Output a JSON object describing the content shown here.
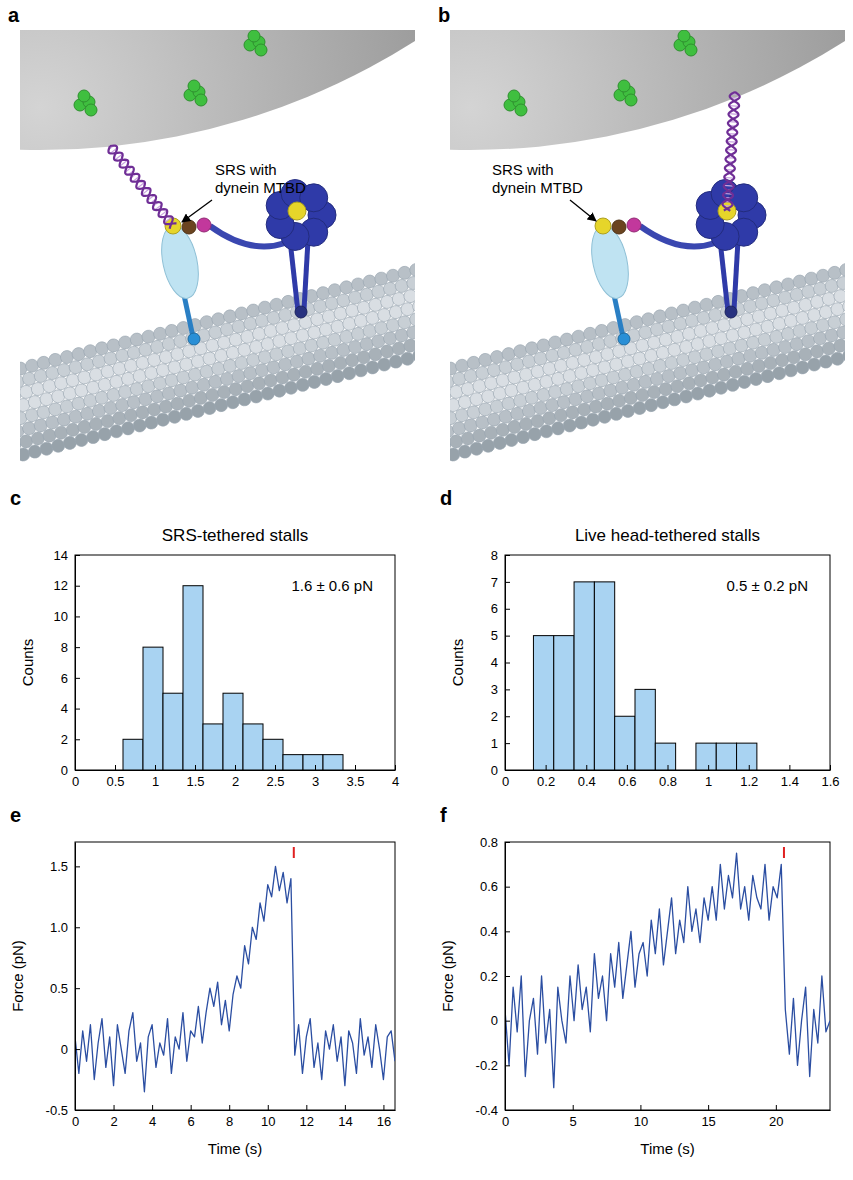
{
  "diagrams": [
    {
      "panel": "a",
      "label": "SRS with dynein MTBD"
    },
    {
      "panel": "b",
      "label": "SRS with dynein MTBD"
    }
  ],
  "chart_data": [
    {
      "panel": "c",
      "type": "histogram",
      "title": "SRS-tethered stalls",
      "annotation": "1.6 ± 0.6 pN",
      "ylabel": "Counts",
      "bins": [
        0.6,
        0.85,
        1.1,
        1.35,
        1.6,
        1.85,
        2.1,
        2.35,
        2.6,
        2.85,
        3.1,
        3.35
      ],
      "values": [
        2,
        8,
        5,
        12,
        3,
        5,
        3,
        2,
        1,
        1,
        1
      ],
      "color": "#a9d3f2",
      "xlim": [
        0,
        4
      ],
      "xticks": [
        0,
        0.5,
        1,
        1.5,
        2,
        2.5,
        3,
        3.5,
        4
      ],
      "ylim": [
        0,
        14
      ],
      "yticks": [
        0,
        2,
        4,
        6,
        8,
        10,
        12,
        14
      ]
    },
    {
      "panel": "d",
      "type": "histogram",
      "title": "Live head-tethered stalls",
      "annotation": "0.5 ± 0.2 pN",
      "ylabel": "Counts",
      "bins": [
        0.14,
        0.24,
        0.34,
        0.44,
        0.54,
        0.64,
        0.74,
        0.84,
        0.94,
        1.04,
        1.14,
        1.24
      ],
      "values": [
        5,
        5,
        7,
        7,
        2,
        3,
        1,
        0,
        1,
        1,
        1
      ],
      "color": "#a9d3f2",
      "xlim": [
        0,
        1.6
      ],
      "xticks": [
        0,
        0.2,
        0.4,
        0.6,
        0.8,
        1,
        1.2,
        1.4,
        1.6
      ],
      "ylim": [
        0,
        8
      ],
      "yticks": [
        0,
        1,
        2,
        3,
        4,
        5,
        6,
        7,
        8
      ]
    },
    {
      "panel": "e",
      "type": "line",
      "xlabel": "Time (s)",
      "ylabel": "Force (pN)",
      "color": "#2b4ea2",
      "event_x": 11.35,
      "x": [
        0,
        0.2,
        0.4,
        0.6,
        0.8,
        1,
        1.2,
        1.4,
        1.6,
        1.8,
        2,
        2.2,
        2.4,
        2.6,
        2.8,
        3,
        3.2,
        3.4,
        3.6,
        3.8,
        4,
        4.2,
        4.4,
        4.6,
        4.8,
        5,
        5.2,
        5.4,
        5.6,
        5.8,
        6,
        6.2,
        6.4,
        6.6,
        6.8,
        7,
        7.2,
        7.4,
        7.6,
        7.8,
        8,
        8.2,
        8.4,
        8.6,
        8.8,
        9,
        9.2,
        9.4,
        9.6,
        9.8,
        10,
        10.2,
        10.4,
        10.6,
        10.8,
        11,
        11.2,
        11.4,
        11.6,
        11.8,
        12,
        12.2,
        12.4,
        12.6,
        12.8,
        13,
        13.2,
        13.4,
        13.6,
        13.8,
        14,
        14.2,
        14.4,
        14.6,
        14.8,
        15,
        15.2,
        15.4,
        15.6,
        15.8,
        16,
        16.2,
        16.4,
        16.6
      ],
      "values": [
        0.1,
        -0.2,
        0.15,
        -0.1,
        0.2,
        -0.25,
        0.05,
        0.25,
        -0.15,
        0.1,
        -0.3,
        0.2,
        0,
        -0.2,
        0.15,
        0.3,
        -0.1,
        0.05,
        -0.35,
        0.1,
        0.2,
        -0.15,
        0.05,
        -0.05,
        0.25,
        -0.2,
        0.1,
        0,
        0.3,
        -0.1,
        0.15,
        0.1,
        0.35,
        0.05,
        0.3,
        0.5,
        0.35,
        0.55,
        0.2,
        0.4,
        0.15,
        0.45,
        0.6,
        0.5,
        0.85,
        0.7,
        1,
        0.9,
        1.2,
        1.05,
        1.35,
        1.25,
        1.5,
        1.3,
        1.45,
        1.2,
        1.4,
        -0.05,
        0.2,
        -0.2,
        0.1,
        0.25,
        -0.15,
        0.05,
        -0.25,
        0.15,
        0,
        0.2,
        -0.1,
        0.1,
        -0.3,
        0.15,
        0.05,
        -0.2,
        0.25,
        -0.05,
        0.1,
        -0.15,
        0.2,
        0,
        -0.25,
        0.1,
        0.15,
        -0.1
      ],
      "xlim": [
        0,
        16.6
      ],
      "xticks": [
        0,
        2,
        4,
        6,
        8,
        10,
        12,
        14,
        16
      ],
      "ylim": [
        -0.5,
        1.7
      ],
      "yticks": [
        -0.5,
        0,
        0.5,
        {
          "value": 1,
          "label": "1.0"
        },
        1.5
      ]
    },
    {
      "panel": "f",
      "type": "line",
      "xlabel": "Time (s)",
      "ylabel": "Force (pN)",
      "color": "#2b4ea2",
      "event_x": 20.6,
      "x": [
        0,
        0.3,
        0.6,
        0.9,
        1.2,
        1.5,
        1.8,
        2.1,
        2.4,
        2.7,
        3,
        3.3,
        3.6,
        3.9,
        4.2,
        4.5,
        4.8,
        5.1,
        5.4,
        5.7,
        6,
        6.3,
        6.6,
        6.9,
        7.2,
        7.5,
        7.8,
        8.1,
        8.4,
        8.7,
        9,
        9.3,
        9.6,
        9.9,
        10.2,
        10.5,
        10.8,
        11.1,
        11.4,
        11.7,
        12,
        12.3,
        12.6,
        12.9,
        13.2,
        13.5,
        13.8,
        14.1,
        14.4,
        14.7,
        15,
        15.3,
        15.6,
        15.9,
        16.2,
        16.5,
        16.8,
        17.1,
        17.4,
        17.7,
        18,
        18.3,
        18.6,
        18.9,
        19.2,
        19.5,
        19.8,
        20.1,
        20.4,
        20.7,
        21,
        21.3,
        21.6,
        21.9,
        22.2,
        22.5,
        22.8,
        23.1,
        23.4,
        23.7,
        24
      ],
      "values": [
        0.05,
        -0.2,
        0.15,
        -0.05,
        0.2,
        -0.25,
        0,
        0.1,
        -0.15,
        0.2,
        -0.1,
        0.05,
        -0.3,
        0.15,
        0,
        -0.1,
        0.2,
        0,
        0.25,
        0.05,
        0.15,
        -0.05,
        0.3,
        0.1,
        0.2,
        0,
        0.3,
        0.15,
        0.35,
        0.1,
        0.25,
        0.4,
        0.15,
        0.3,
        0.35,
        0.2,
        0.45,
        0.3,
        0.5,
        0.25,
        0.4,
        0.55,
        0.3,
        0.45,
        0.35,
        0.6,
        0.4,
        0.5,
        0.35,
        0.55,
        0.45,
        0.6,
        0.45,
        0.7,
        0.5,
        0.65,
        0.55,
        0.75,
        0.5,
        0.6,
        0.45,
        0.65,
        0.55,
        0.5,
        0.7,
        0.45,
        0.6,
        0.55,
        0.7,
        0.05,
        -0.15,
        0.1,
        -0.2,
        0,
        0.15,
        -0.25,
        0.05,
        -0.1,
        0.2,
        -0.05,
        0
      ],
      "xlim": [
        0,
        24
      ],
      "xticks": [
        0,
        5,
        10,
        15,
        20
      ],
      "ylim": [
        -0.4,
        0.8
      ],
      "yticks": [
        -0.4,
        -0.2,
        0,
        0.2,
        0.4,
        0.6,
        0.8
      ]
    }
  ]
}
